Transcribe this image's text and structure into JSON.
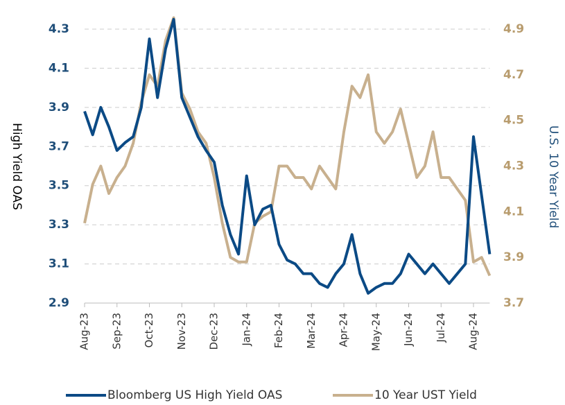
{
  "chart_data": {
    "type": "line",
    "categories": [
      "Aug-23",
      null,
      null,
      null,
      "Sep-23",
      null,
      null,
      null,
      "Oct-23",
      null,
      null,
      null,
      "Nov-23",
      null,
      null,
      null,
      "Dec-23",
      null,
      null,
      null,
      "Jan-24",
      null,
      null,
      null,
      "Feb-24",
      null,
      null,
      null,
      "Mar-24",
      null,
      null,
      null,
      "Apr-24",
      null,
      null,
      null,
      "May-24",
      null,
      null,
      null,
      "Jun-24",
      null,
      null,
      null,
      "Jul-24",
      null,
      null,
      null,
      "Aug-24",
      null,
      null
    ],
    "series": [
      {
        "name": "Bloomberg US High Yield OAS",
        "color": "#0b4a85",
        "axis": "y",
        "values": [
          3.88,
          3.76,
          3.9,
          3.8,
          3.68,
          3.72,
          3.75,
          3.9,
          4.25,
          3.95,
          4.2,
          4.35,
          3.95,
          3.85,
          3.75,
          3.68,
          3.62,
          3.4,
          3.25,
          3.15,
          3.55,
          3.3,
          3.38,
          3.4,
          3.2,
          3.12,
          3.1,
          3.05,
          3.05,
          3.0,
          2.98,
          3.05,
          3.1,
          3.25,
          3.05,
          2.95,
          2.98,
          3.0,
          3.0,
          3.05,
          3.15,
          3.1,
          3.05,
          3.1,
          3.05,
          3.0,
          3.05,
          3.1,
          3.75,
          3.45,
          3.15
        ]
      },
      {
        "name": "10 Year UST Yield",
        "color": "#c8b08e",
        "axis": "y2",
        "values": [
          4.05,
          4.22,
          4.3,
          4.18,
          4.25,
          4.3,
          4.4,
          4.58,
          4.7,
          4.65,
          4.85,
          4.95,
          4.62,
          4.55,
          4.45,
          4.4,
          4.25,
          4.05,
          3.9,
          3.88,
          3.88,
          4.05,
          4.08,
          4.1,
          4.3,
          4.3,
          4.25,
          4.25,
          4.2,
          4.3,
          4.25,
          4.2,
          4.45,
          4.65,
          4.6,
          4.7,
          4.45,
          4.4,
          4.45,
          4.55,
          4.4,
          4.25,
          4.3,
          4.45,
          4.25,
          4.25,
          4.2,
          4.15,
          3.88,
          3.9,
          3.82
        ]
      }
    ],
    "y_label": "High Yield OAS",
    "y2_label": "U.S. 10 Year Yield",
    "ylim": [
      2.9,
      4.3
    ],
    "yticks": [
      2.9,
      3.1,
      3.3,
      3.5,
      3.7,
      3.9,
      4.1,
      4.3
    ],
    "y2lim": [
      3.7,
      4.9
    ],
    "y2ticks": [
      3.7,
      3.9,
      4.1,
      4.3,
      4.5,
      4.7,
      4.9
    ],
    "grid": true,
    "legend": "bottom"
  }
}
